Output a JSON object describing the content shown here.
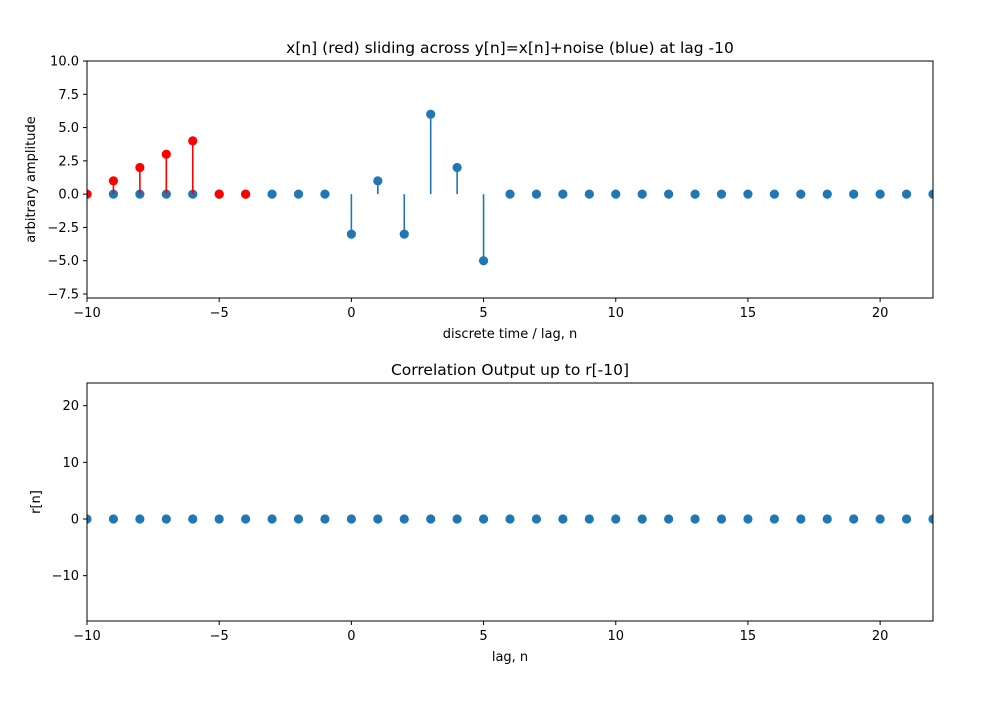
{
  "chart_data": [
    {
      "type": "stem",
      "title": "x[n] (red) sliding across y[n]=x[n]+noise (blue) at lag -10",
      "xlabel": "discrete time / lag, n",
      "ylabel": "arbitrary amplitude",
      "xlim": [
        -10,
        22
      ],
      "ylim": [
        -7.8,
        10.0
      ],
      "xticks": [
        -10,
        -5,
        0,
        5,
        10,
        15,
        20
      ],
      "xtick_labels": [
        "−10",
        "−5",
        "0",
        "5",
        "10",
        "15",
        "20"
      ],
      "yticks": [
        -7.5,
        -5.0,
        -2.5,
        0.0,
        2.5,
        5.0,
        7.5,
        10.0
      ],
      "ytick_labels": [
        "−7.5",
        "−5.0",
        "−2.5",
        "0.0",
        "2.5",
        "5.0",
        "7.5",
        "10.0"
      ],
      "grid": false,
      "series": [
        {
          "color": "#1f77b4",
          "x": [
            -10,
            -9,
            -8,
            -7,
            -6,
            -5,
            -4,
            -3,
            -2,
            -1,
            0,
            1,
            2,
            3,
            4,
            5,
            6,
            7,
            8,
            9,
            10,
            11,
            12,
            13,
            14,
            15,
            16,
            17,
            18,
            19,
            20,
            21,
            22
          ],
          "values": [
            0,
            0,
            0,
            0,
            0,
            0,
            0,
            0,
            0,
            0,
            -3,
            1,
            -3,
            6,
            2,
            -5,
            0,
            0,
            0,
            0,
            0,
            0,
            0,
            0,
            0,
            0,
            0,
            0,
            0,
            0,
            0,
            0,
            0
          ]
        },
        {
          "color": "#ff0000",
          "x": [
            -10,
            -9,
            -8,
            -7,
            -6,
            -5,
            -4
          ],
          "values": [
            0,
            1,
            2,
            3,
            4,
            0,
            0
          ]
        }
      ]
    },
    {
      "type": "stem",
      "title": "Correlation Output up to r[-10]",
      "xlabel": "lag, n",
      "ylabel": "r[n]",
      "xlim": [
        -10,
        22
      ],
      "ylim": [
        -18,
        24
      ],
      "xticks": [
        -10,
        -5,
        0,
        5,
        10,
        15,
        20
      ],
      "xtick_labels": [
        "−10",
        "−5",
        "0",
        "5",
        "10",
        "15",
        "20"
      ],
      "yticks": [
        -10,
        0,
        10,
        20
      ],
      "ytick_labels": [
        "−10",
        "0",
        "10",
        "20"
      ],
      "grid": false,
      "series": [
        {
          "color": "#1f77b4",
          "x": [
            -10,
            -9,
            -8,
            -7,
            -6,
            -5,
            -4,
            -3,
            -2,
            -1,
            0,
            1,
            2,
            3,
            4,
            5,
            6,
            7,
            8,
            9,
            10,
            11,
            12,
            13,
            14,
            15,
            16,
            17,
            18,
            19,
            20,
            21,
            22
          ],
          "values": [
            0,
            0,
            0,
            0,
            0,
            0,
            0,
            0,
            0,
            0,
            0,
            0,
            0,
            0,
            0,
            0,
            0,
            0,
            0,
            0,
            0,
            0,
            0,
            0,
            0,
            0,
            0,
            0,
            0,
            0,
            0,
            0,
            0
          ]
        }
      ]
    }
  ]
}
